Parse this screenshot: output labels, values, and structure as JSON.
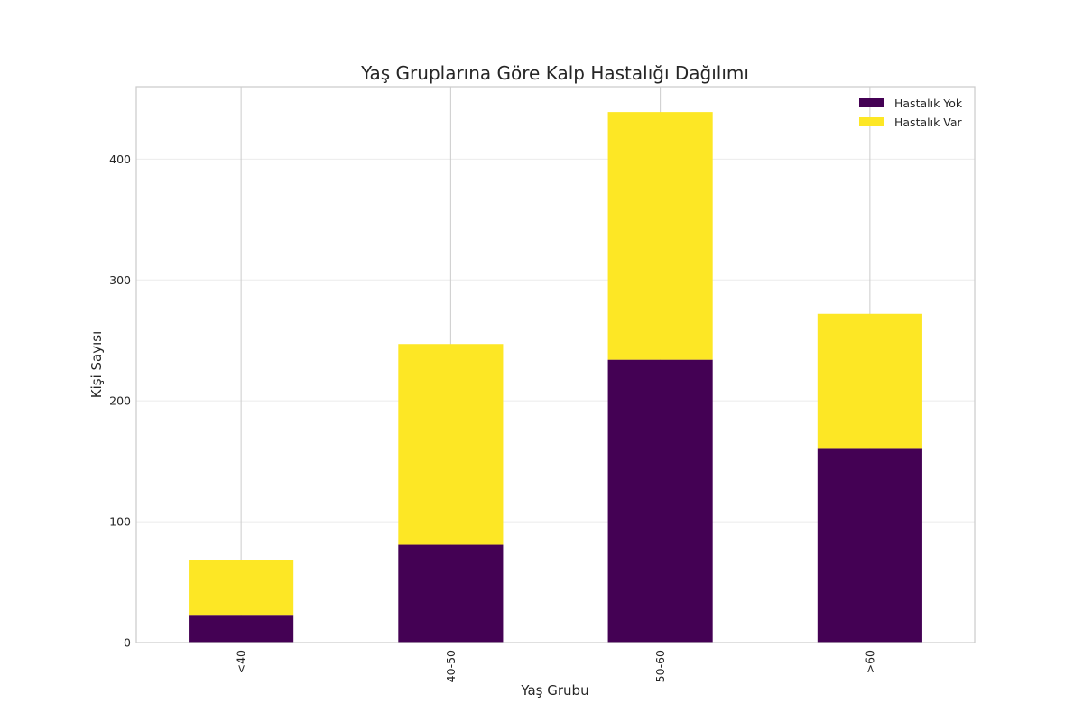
{
  "chart_data": {
    "type": "bar",
    "stacked": true,
    "title": "Yaş Gruplarına Göre Kalp Hastalığı Dağılımı",
    "xlabel": "Yaş Grubu",
    "ylabel": "Kişi Sayısı",
    "categories": [
      "<40",
      "40-50",
      "50-60",
      ">60"
    ],
    "series": [
      {
        "name": "Hastalık Yok",
        "color": "#440154",
        "values": [
          23,
          81,
          234,
          161
        ]
      },
      {
        "name": "Hastalık Var",
        "color": "#fde725",
        "values": [
          45,
          166,
          205,
          111
        ]
      }
    ],
    "ylim": [
      0,
      460
    ],
    "yticks": [
      0,
      100,
      200,
      300,
      400
    ],
    "grid": true,
    "legend_position": "top-right"
  }
}
